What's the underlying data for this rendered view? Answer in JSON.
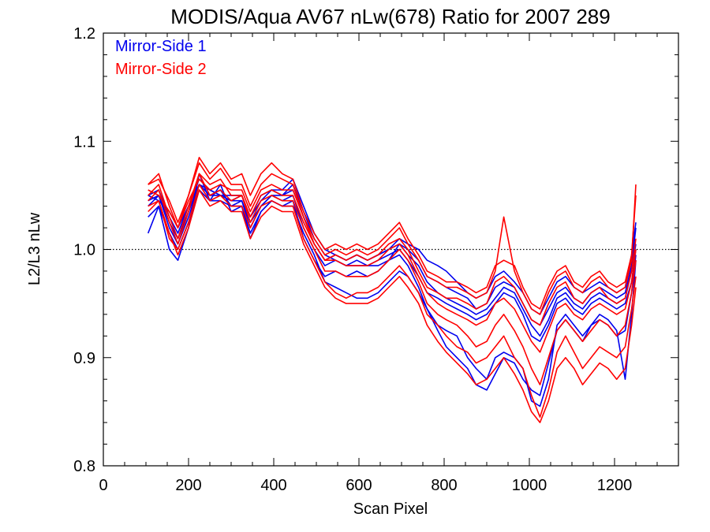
{
  "chart_data": {
    "type": "line",
    "title": "MODIS/Aqua AV67 nLw(678) Ratio for 2007 289",
    "xlabel": "Scan Pixel",
    "ylabel": "L2/L3 nLw",
    "xlim": [
      0,
      1350
    ],
    "ylim": [
      0.8,
      1.2
    ],
    "xticks": [
      0,
      200,
      400,
      600,
      800,
      1000,
      1200
    ],
    "xtick_labels": [
      "0",
      "200",
      "400",
      "600",
      "800",
      "1000",
      "1200"
    ],
    "yticks": [
      0.8,
      0.9,
      1.0,
      1.1,
      1.2
    ],
    "ytick_labels": [
      "0.8",
      "0.9",
      "1.0",
      "1.1",
      "1.2"
    ],
    "reference_line": {
      "y": 1.0,
      "style": "dotted"
    },
    "grid": false,
    "legend_position": "top-left",
    "x": [
      105,
      130,
      155,
      175,
      200,
      225,
      250,
      275,
      300,
      325,
      345,
      370,
      395,
      420,
      445,
      470,
      495,
      520,
      545,
      570,
      595,
      620,
      645,
      670,
      695,
      715,
      740,
      760,
      785,
      805,
      830,
      855,
      875,
      900,
      920,
      940,
      965,
      985,
      1005,
      1025,
      1045,
      1065,
      1085,
      1105,
      1125,
      1145,
      1165,
      1185,
      1205,
      1225,
      1240,
      1250
    ],
    "series": [
      {
        "name": "Mirror-Side 1",
        "color": "#0000ee",
        "lines": [
          [
            1.04,
            1.05,
            1.02,
            1.005,
            1.03,
            1.06,
            1.05,
            1.055,
            1.04,
            1.045,
            1.02,
            1.04,
            1.05,
            1.045,
            1.05,
            1.02,
            1.0,
            0.985,
            0.99,
            0.985,
            0.99,
            0.985,
            0.99,
            0.995,
            1.0,
            0.99,
            0.975,
            0.96,
            0.955,
            0.95,
            0.945,
            0.94,
            0.935,
            0.94,
            0.95,
            0.96,
            0.955,
            0.94,
            0.92,
            0.915,
            0.93,
            0.95,
            0.955,
            0.945,
            0.94,
            0.95,
            0.955,
            0.95,
            0.945,
            0.95,
            0.97,
            1.0
          ],
          [
            1.05,
            1.045,
            1.035,
            1.02,
            1.04,
            1.065,
            1.055,
            1.05,
            1.045,
            1.05,
            1.03,
            1.045,
            1.055,
            1.05,
            1.055,
            1.03,
            1.005,
            0.99,
            0.995,
            0.99,
            0.995,
            0.99,
            0.995,
            1.0,
            1.005,
            0.995,
            0.985,
            0.97,
            0.96,
            0.955,
            0.95,
            0.945,
            0.94,
            0.945,
            0.955,
            0.965,
            0.96,
            0.945,
            0.93,
            0.92,
            0.935,
            0.955,
            0.96,
            0.95,
            0.945,
            0.955,
            0.96,
            0.955,
            0.95,
            0.955,
            0.98,
            1.005
          ],
          [
            1.015,
            1.04,
            1.0,
            0.99,
            1.02,
            1.07,
            1.045,
            1.06,
            1.035,
            1.04,
            1.01,
            1.035,
            1.045,
            1.04,
            1.045,
            1.01,
            0.99,
            0.975,
            0.98,
            0.975,
            0.98,
            0.975,
            0.98,
            0.99,
            0.995,
            0.985,
            0.965,
            0.945,
            0.93,
            0.925,
            0.92,
            0.9,
            0.89,
            0.88,
            0.9,
            0.905,
            0.9,
            0.89,
            0.86,
            0.855,
            0.88,
            0.93,
            0.94,
            0.93,
            0.92,
            0.93,
            0.94,
            0.935,
            0.925,
            0.88,
            0.94,
            0.99
          ],
          [
            1.045,
            1.05,
            1.025,
            1.01,
            1.035,
            1.06,
            1.05,
            1.05,
            1.045,
            1.045,
            1.025,
            1.04,
            1.05,
            1.05,
            1.06,
            1.035,
            1.01,
            0.995,
            0.99,
            0.985,
            0.985,
            0.985,
            0.985,
            0.99,
            1.005,
            1.0,
            0.99,
            0.975,
            0.97,
            0.965,
            0.96,
            0.955,
            0.945,
            0.95,
            0.965,
            0.97,
            0.965,
            0.95,
            0.935,
            0.93,
            0.945,
            0.96,
            0.965,
            0.955,
            0.95,
            0.96,
            0.965,
            0.96,
            0.955,
            0.96,
            0.985,
            1.02
          ],
          [
            1.03,
            1.04,
            1.015,
            1.0,
            1.025,
            1.055,
            1.045,
            1.045,
            1.04,
            1.04,
            1.015,
            1.035,
            1.045,
            1.04,
            1.04,
            1.015,
            0.995,
            0.97,
            0.965,
            0.96,
            0.955,
            0.955,
            0.96,
            0.97,
            0.98,
            0.975,
            0.96,
            0.945,
            0.925,
            0.91,
            0.9,
            0.89,
            0.875,
            0.87,
            0.885,
            0.9,
            0.895,
            0.88,
            0.87,
            0.865,
            0.895,
            0.925,
            0.935,
            0.925,
            0.915,
            0.93,
            0.935,
            0.93,
            0.92,
            0.925,
            0.96,
            0.995
          ],
          [
            1.05,
            1.055,
            1.03,
            1.015,
            1.04,
            1.06,
            1.055,
            1.05,
            1.05,
            1.05,
            1.03,
            1.05,
            1.055,
            1.055,
            1.065,
            1.04,
            1.015,
            1.0,
            0.995,
            0.99,
            0.995,
            0.99,
            0.995,
            1.0,
            1.01,
            1.005,
            1.0,
            0.99,
            0.985,
            0.98,
            0.97,
            0.96,
            0.955,
            0.96,
            0.975,
            0.98,
            0.97,
            0.96,
            0.945,
            0.94,
            0.955,
            0.97,
            0.975,
            0.965,
            0.96,
            0.965,
            0.97,
            0.965,
            0.96,
            0.965,
            0.995,
            1.025
          ]
        ]
      },
      {
        "name": "Mirror-Side 2",
        "color": "#ff0000",
        "lines": [
          [
            1.05,
            1.06,
            1.03,
            1.01,
            1.04,
            1.07,
            1.06,
            1.065,
            1.05,
            1.05,
            1.03,
            1.05,
            1.055,
            1.05,
            1.05,
            1.025,
            1.005,
            0.99,
            0.995,
            0.99,
            0.995,
            0.99,
            0.995,
            1.005,
            1.01,
            1.0,
            0.98,
            0.965,
            0.96,
            0.955,
            0.955,
            0.95,
            0.945,
            0.95,
            0.97,
            0.975,
            0.965,
            0.95,
            0.935,
            0.93,
            0.95,
            0.965,
            0.97,
            0.955,
            0.95,
            0.96,
            0.965,
            0.955,
            0.95,
            0.955,
            0.98,
            1.01
          ],
          [
            1.06,
            1.065,
            1.045,
            1.025,
            1.05,
            1.08,
            1.065,
            1.075,
            1.06,
            1.06,
            1.04,
            1.06,
            1.07,
            1.065,
            1.06,
            1.03,
            1.01,
            0.995,
            1.0,
            0.995,
            1.0,
            0.995,
            1.0,
            1.01,
            1.02,
            1.005,
            0.99,
            0.975,
            0.97,
            0.965,
            0.965,
            0.96,
            0.955,
            0.96,
            0.98,
            1.03,
            0.98,
            0.96,
            0.945,
            0.94,
            0.96,
            0.975,
            0.98,
            0.965,
            0.96,
            0.97,
            0.975,
            0.965,
            0.96,
            0.965,
            0.99,
            1.06
          ],
          [
            1.04,
            1.045,
            1.01,
            1.0,
            1.025,
            1.06,
            1.045,
            1.05,
            1.04,
            1.04,
            1.02,
            1.04,
            1.045,
            1.04,
            1.04,
            1.01,
            0.99,
            0.97,
            0.96,
            0.955,
            0.96,
            0.96,
            0.965,
            0.975,
            0.985,
            0.975,
            0.96,
            0.94,
            0.93,
            0.92,
            0.91,
            0.905,
            0.895,
            0.9,
            0.91,
            0.92,
            0.9,
            0.89,
            0.865,
            0.845,
            0.87,
            0.905,
            0.92,
            0.905,
            0.89,
            0.9,
            0.91,
            0.905,
            0.9,
            0.91,
            0.945,
            0.975
          ],
          [
            1.055,
            1.05,
            1.035,
            1.02,
            1.045,
            1.065,
            1.055,
            1.06,
            1.055,
            1.055,
            1.035,
            1.055,
            1.06,
            1.055,
            1.055,
            1.03,
            1.005,
            0.99,
            0.99,
            0.985,
            0.985,
            0.985,
            0.99,
            1.0,
            1.005,
            0.995,
            0.975,
            0.96,
            0.95,
            0.945,
            0.94,
            0.935,
            0.93,
            0.935,
            0.95,
            0.955,
            0.945,
            0.93,
            0.915,
            0.905,
            0.925,
            0.945,
            0.95,
            0.94,
            0.935,
            0.945,
            0.95,
            0.945,
            0.94,
            0.945,
            0.97,
            1.0
          ],
          [
            1.045,
            1.055,
            1.025,
            1.005,
            1.035,
            1.07,
            1.05,
            1.055,
            1.045,
            1.05,
            1.025,
            1.045,
            1.05,
            1.045,
            1.045,
            1.02,
            1.0,
            0.98,
            0.98,
            0.975,
            0.975,
            0.975,
            0.98,
            0.99,
            1.0,
            0.99,
            0.97,
            0.95,
            0.94,
            0.935,
            0.93,
            0.92,
            0.91,
            0.915,
            0.93,
            0.94,
            0.925,
            0.91,
            0.89,
            0.875,
            0.9,
            0.925,
            0.935,
            0.925,
            0.915,
            0.925,
            0.935,
            0.93,
            0.92,
            0.93,
            0.96,
            0.99
          ],
          [
            1.06,
            1.07,
            1.04,
            1.02,
            1.05,
            1.085,
            1.07,
            1.08,
            1.065,
            1.07,
            1.05,
            1.07,
            1.08,
            1.07,
            1.065,
            1.035,
            1.015,
            1.0,
            1.005,
            1.0,
            1.005,
            1.0,
            1.005,
            1.015,
            1.025,
            1.01,
            0.995,
            0.98,
            0.975,
            0.97,
            0.97,
            0.965,
            0.96,
            0.965,
            0.985,
            0.99,
            0.985,
            0.965,
            0.95,
            0.945,
            0.965,
            0.98,
            0.985,
            0.97,
            0.965,
            0.975,
            0.98,
            0.97,
            0.965,
            0.97,
            0.995,
            1.05
          ],
          [
            1.035,
            1.045,
            1.015,
            0.995,
            1.02,
            1.055,
            1.04,
            1.045,
            1.035,
            1.035,
            1.01,
            1.03,
            1.04,
            1.035,
            1.035,
            1.005,
            0.985,
            0.965,
            0.955,
            0.95,
            0.95,
            0.95,
            0.955,
            0.965,
            0.975,
            0.965,
            0.95,
            0.93,
            0.915,
            0.905,
            0.895,
            0.885,
            0.875,
            0.88,
            0.89,
            0.9,
            0.885,
            0.87,
            0.85,
            0.84,
            0.86,
            0.89,
            0.9,
            0.89,
            0.875,
            0.885,
            0.895,
            0.89,
            0.88,
            0.89,
            0.93,
            0.965
          ]
        ]
      }
    ]
  }
}
